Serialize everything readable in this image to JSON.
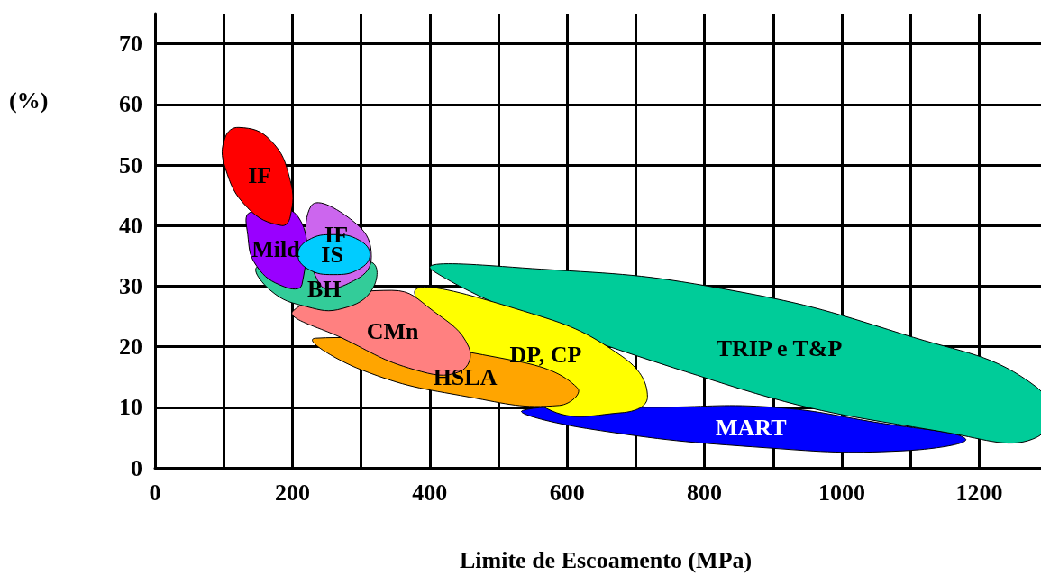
{
  "chart_data": {
    "type": "area",
    "xlabel": "Limite de Escoamento (MPa)",
    "ylabel": "(%)",
    "xlim": [
      0,
      1290
    ],
    "ylim": [
      0,
      75
    ],
    "xticks": [
      0,
      {
        "value": 100,
        "label": null
      },
      200,
      {
        "value": 300,
        "label": null
      },
      400,
      {
        "value": 500,
        "label": null
      },
      600,
      {
        "value": 700,
        "label": null
      },
      800,
      {
        "value": 900,
        "label": null
      },
      1000,
      {
        "value": 1100,
        "label": null
      },
      1200
    ],
    "yticks": [
      0,
      10,
      20,
      30,
      40,
      50,
      60,
      70
    ],
    "grid": true,
    "series": [
      {
        "name": "MART",
        "color": "#0000ff",
        "x": [
          536,
          628,
          891,
          1088,
          1180,
          1050,
          900,
          740
        ],
        "values": [
          9.5,
          6.5,
          3.3,
          2.8,
          4.8,
          7.5,
          10,
          10
        ]
      },
      {
        "name": "TRIP e T&P",
        "color": "#00cc99",
        "x": [
          405,
          562,
          825,
          1088,
          1285,
          1285,
          1154,
          825
        ],
        "values": [
          32.5,
          32.8,
          29.6,
          22.1,
          13.2,
          5.1,
          5.8,
          14
        ]
      },
      {
        "name": "DP, CP",
        "color": "#ffff00",
        "x": [
          378,
          536,
          680,
          717,
          680,
          562
        ],
        "values": [
          28.8,
          25.9,
          18.4,
          11.7,
          9.1,
          10.3
        ]
      },
      {
        "name": "HSLA",
        "color": "#ffa500",
        "x": [
          523,
          615,
          589,
          457,
          300,
          234
        ],
        "values": [
          17.7,
          13.2,
          10.3,
          11.7,
          16.2,
          21.4
        ]
      },
      {
        "name": "CMn",
        "color": "#ff8080",
        "x": [
          345,
          405,
          457,
          444,
          378,
          273,
          201
        ],
        "values": [
          29.3,
          25.9,
          19.9,
          15.9,
          16.2,
          21.4,
          25.9
        ]
      },
      {
        "name": "BH",
        "color": "#33cc99",
        "x": [
          313,
          317,
          273,
          221,
          168,
          151
        ],
        "values": [
          34,
          29.6,
          26.3,
          26.6,
          29.3,
          33.3
        ]
      },
      {
        "name": "IF",
        "color": "#cc66ee",
        "x": [
          227,
          293,
          315,
          293,
          240
        ],
        "values": [
          43.2,
          40.3,
          34.8,
          31.1,
          30.3
        ]
      },
      {
        "name": "Mild",
        "color": "#9900ff",
        "x": [
          208,
          214,
          188,
          148,
          135,
          139
        ],
        "values": [
          41.5,
          30.3,
          29.9,
          33.3,
          38.5,
          42.2
        ]
      },
      {
        "name": "IS",
        "color": "#00ccff",
        "x": [
          260,
          297,
          313,
          297,
          260,
          223,
          208,
          223
        ],
        "values": [
          38.5,
          37.6,
          35.2,
          32.8,
          31.9,
          32.8,
          35.2,
          37.6
        ]
      },
      {
        "name": "IF",
        "color": "#ff0000",
        "x": [
          122,
          168,
          197,
          197,
          184,
          135,
          102,
          102
        ],
        "values": [
          56.2,
          54.1,
          47.4,
          41.5,
          40,
          42.9,
          49.6,
          54.5
        ]
      }
    ]
  }
}
